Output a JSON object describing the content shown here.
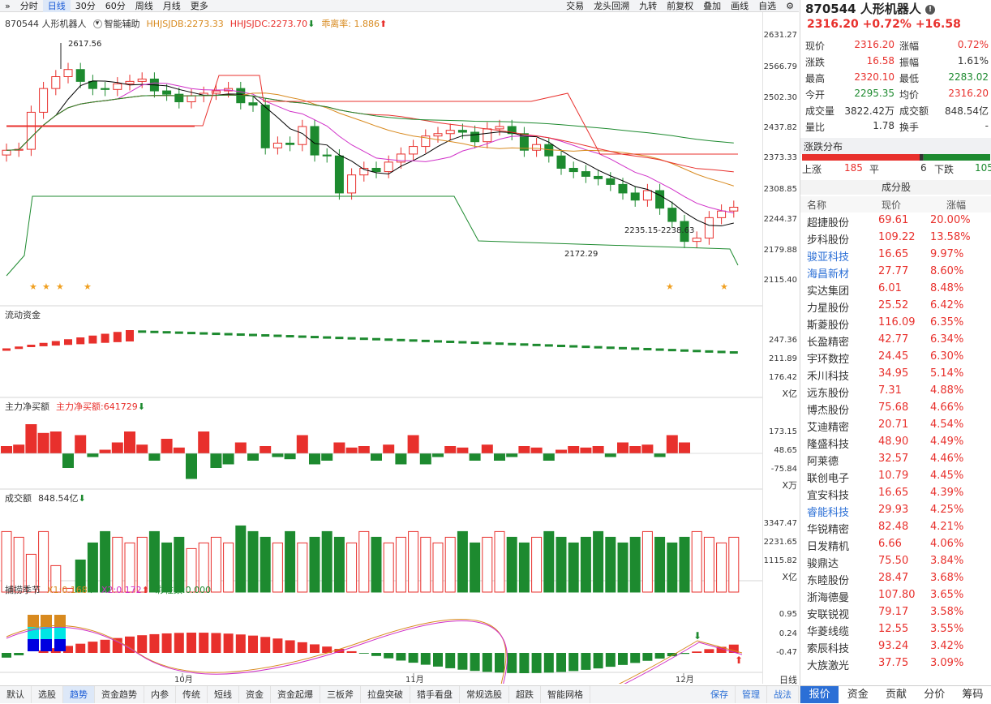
{
  "toolbar": {
    "tabs": [
      "分时",
      "日线",
      "30分",
      "60分",
      "周线",
      "月线",
      "更多"
    ],
    "active": "日线",
    "right": [
      "交易",
      "龙头回溯",
      "九转",
      "前复权",
      "叠加",
      "画线",
      "自选"
    ]
  },
  "header": {
    "stock": "870544 人形机器人",
    "aux": "智能辅助",
    "hhjsjdb": "HHJSJDB:2273.33",
    "hhjsjdc": "HHJSJDC:2273.70",
    "deviation": "乖离率: 1.886"
  },
  "main": {
    "axis_labels": [
      "2631.27",
      "2566.79",
      "2502.30",
      "2437.82",
      "2373.33",
      "2308.85",
      "2244.37",
      "2179.88",
      "2115.40"
    ],
    "annotations": {
      "high": "2617.56",
      "low": "2172.29",
      "range": "2235.15-2238.63"
    }
  },
  "flow": {
    "title": "流动资金",
    "axis": [
      "247.36",
      "211.89",
      "176.42"
    ],
    "unit": "X亿"
  },
  "mainnet": {
    "title": "主力净买额",
    "value": "主力净买额:641729",
    "axis": [
      "173.15",
      "48.65",
      "-75.84"
    ],
    "unit": "X万"
  },
  "volume": {
    "title": "成交额",
    "value": "848.54亿",
    "axis": [
      "3347.47",
      "2231.65",
      "1115.82"
    ],
    "unit": "X亿"
  },
  "season": {
    "title": "捕捞季节",
    "x1": "X1:0.168",
    "x2": "X2:0.172",
    "bars": "彩柱数:0.000",
    "axis": [
      "0.95",
      "0.24",
      "-0.47"
    ]
  },
  "x_months": [
    "10月",
    "11月",
    "12月"
  ],
  "x_unit": "日线",
  "bottom_tabs": [
    "默认",
    "选股",
    "趋势",
    "资金趋势",
    "内参",
    "传统",
    "短线",
    "资金",
    "资金起爆",
    "三板斧",
    "拉盘突破",
    "猎手看盘",
    "常规选股",
    "超跌",
    "智能网格"
  ],
  "bottom_active": "趋势",
  "bottom_right": [
    "保存",
    "管理",
    "战法"
  ],
  "quote": {
    "title": "870544 人形机器人",
    "price_line": "2316.20  +0.72%  +16.58",
    "rows": [
      [
        "现价",
        "2316.20",
        "涨幅",
        "0.72%"
      ],
      [
        "涨跌",
        "16.58",
        "振幅",
        "1.61%"
      ],
      [
        "最高",
        "2320.10",
        "最低",
        "2283.02"
      ],
      [
        "今开",
        "2295.35",
        "均价",
        "2316.20"
      ],
      [
        "成交量",
        "3822.42万",
        "成交额",
        "848.54亿"
      ],
      [
        "量比",
        "1.78",
        "换手",
        "-"
      ]
    ]
  },
  "distribution": {
    "title": "涨跌分布",
    "up_label": "上涨",
    "up": "185",
    "flat_label": "平",
    "flat": "6",
    "down_label": "下跌",
    "down": "105"
  },
  "components": {
    "title": "成分股",
    "headers": [
      "名称",
      "现价",
      "涨幅"
    ],
    "rows": [
      [
        "超捷股份",
        "69.61",
        "20.00%"
      ],
      [
        "步科股份",
        "109.22",
        "13.58%"
      ],
      [
        "骏亚科技",
        "16.65",
        "9.97%"
      ],
      [
        "海昌新材",
        "27.77",
        "8.60%"
      ],
      [
        "实达集团",
        "6.01",
        "8.48%"
      ],
      [
        "力星股份",
        "25.52",
        "6.42%"
      ],
      [
        "斯菱股份",
        "116.09",
        "6.35%"
      ],
      [
        "长盈精密",
        "42.77",
        "6.34%"
      ],
      [
        "宇环数控",
        "24.45",
        "6.30%"
      ],
      [
        "禾川科技",
        "34.95",
        "5.14%"
      ],
      [
        "远东股份",
        "7.31",
        "4.88%"
      ],
      [
        "博杰股份",
        "75.68",
        "4.66%"
      ],
      [
        "艾迪精密",
        "20.71",
        "4.54%"
      ],
      [
        "隆盛科技",
        "48.90",
        "4.49%"
      ],
      [
        "阿莱德",
        "32.57",
        "4.46%"
      ],
      [
        "联创电子",
        "10.79",
        "4.45%"
      ],
      [
        "宜安科技",
        "16.65",
        "4.39%"
      ],
      [
        "睿能科技",
        "29.93",
        "4.25%"
      ],
      [
        "华锐精密",
        "82.48",
        "4.21%"
      ],
      [
        "日发精机",
        "6.66",
        "4.06%"
      ],
      [
        "骏鼎达",
        "75.50",
        "3.84%"
      ],
      [
        "东睦股份",
        "28.47",
        "3.68%"
      ],
      [
        "浙海德曼",
        "107.80",
        "3.65%"
      ],
      [
        "安联锐视",
        "79.17",
        "3.58%"
      ],
      [
        "华菱线缆",
        "12.55",
        "3.55%"
      ],
      [
        "索辰科技",
        "93.24",
        "3.42%"
      ],
      [
        "大族激光",
        "37.75",
        "3.09%"
      ]
    ]
  },
  "rp_tabs": [
    "报价",
    "资金",
    "贡献",
    "分价",
    "筹码"
  ],
  "rp_tab_active": "报价",
  "colors": {
    "up": "#e8302c",
    "down": "#1d8a2f",
    "accent": "#2b6fd6"
  }
}
